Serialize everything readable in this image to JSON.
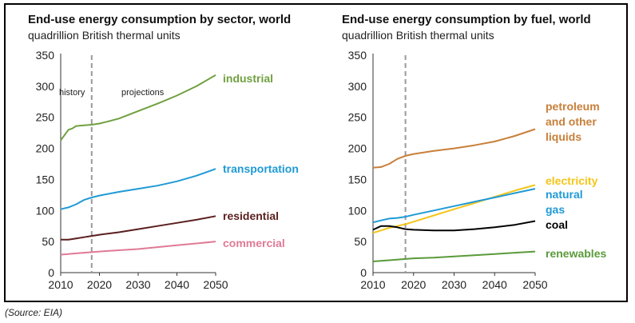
{
  "source_note": "(Source: EIA)",
  "colors": {
    "industrial": "#70a040",
    "transportation": "#1f9ad6",
    "residential": "#5a1e1e",
    "commercial": "#e07a95",
    "petroleum": "#c87f3a",
    "electricity": "#f5c518",
    "natural_gas": "#1f9ad6",
    "coal": "#000000",
    "renewables": "#5a9a3a",
    "divider": "#999999"
  },
  "chart_data": [
    {
      "type": "line",
      "title": "End-use energy consumption by sector, world",
      "subtitle": "quadrillion British thermal units",
      "xlim": [
        2010,
        2050
      ],
      "ylim": [
        0,
        350
      ],
      "xticks": [
        2010,
        2020,
        2030,
        2040,
        2050
      ],
      "yticks": [
        0,
        50,
        100,
        150,
        200,
        250,
        300,
        350
      ],
      "divider_x": 2018,
      "annotations": [
        "history",
        "projections"
      ],
      "grid": false,
      "series": [
        {
          "name": "industrial",
          "color_key": "industrial",
          "x": [
            2010,
            2012,
            2013,
            2014,
            2016,
            2018,
            2020,
            2022,
            2025,
            2030,
            2035,
            2040,
            2045,
            2050
          ],
          "y": [
            213,
            230,
            232,
            236,
            237,
            238,
            240,
            243,
            248,
            260,
            272,
            285,
            300,
            318
          ]
        },
        {
          "name": "transportation",
          "color_key": "transportation",
          "x": [
            2010,
            2012,
            2014,
            2016,
            2018,
            2020,
            2025,
            2030,
            2035,
            2040,
            2045,
            2050
          ],
          "y": [
            102,
            105,
            110,
            117,
            121,
            124,
            130,
            135,
            140,
            147,
            156,
            167
          ]
        },
        {
          "name": "residential",
          "color_key": "residential",
          "x": [
            2010,
            2012,
            2014,
            2016,
            2018,
            2020,
            2025,
            2030,
            2035,
            2040,
            2045,
            2050
          ],
          "y": [
            53,
            53,
            55,
            57,
            59,
            61,
            65,
            70,
            75,
            80,
            85,
            91
          ]
        },
        {
          "name": "commercial",
          "color_key": "commercial",
          "x": [
            2010,
            2012,
            2014,
            2016,
            2018,
            2020,
            2025,
            2030,
            2035,
            2040,
            2045,
            2050
          ],
          "y": [
            29,
            30,
            31,
            32,
            33,
            34,
            36,
            38,
            41,
            44,
            47,
            50
          ]
        }
      ]
    },
    {
      "type": "line",
      "title": "End-use energy consumption by fuel, world",
      "subtitle": "quadrillion British thermal units",
      "xlim": [
        2010,
        2050
      ],
      "ylim": [
        0,
        350
      ],
      "xticks": [
        2010,
        2020,
        2030,
        2040,
        2050
      ],
      "yticks": [
        0,
        50,
        100,
        150,
        200,
        250,
        300,
        350
      ],
      "divider_x": 2018,
      "grid": false,
      "series": [
        {
          "name": "petroleum and other liquids",
          "label_lines": [
            "petroleum",
            "and other",
            "liquids"
          ],
          "color_key": "petroleum",
          "x": [
            2010,
            2012,
            2014,
            2016,
            2018,
            2020,
            2025,
            2030,
            2035,
            2040,
            2045,
            2050
          ],
          "y": [
            169,
            170,
            175,
            183,
            188,
            191,
            196,
            200,
            205,
            211,
            220,
            231
          ]
        },
        {
          "name": "electricity",
          "label_lines": [
            "electricity"
          ],
          "color_key": "electricity",
          "x": [
            2010,
            2012,
            2014,
            2016,
            2018,
            2020,
            2025,
            2030,
            2035,
            2040,
            2045,
            2050
          ],
          "y": [
            64,
            68,
            72,
            75,
            78,
            82,
            92,
            102,
            112,
            122,
            132,
            141
          ]
        },
        {
          "name": "natural gas",
          "label_lines": [
            "natural",
            "gas"
          ],
          "color_key": "natural_gas",
          "x": [
            2010,
            2012,
            2014,
            2016,
            2018,
            2020,
            2025,
            2030,
            2035,
            2040,
            2045,
            2050
          ],
          "y": [
            81,
            84,
            87,
            88,
            90,
            93,
            100,
            107,
            114,
            121,
            128,
            135
          ]
        },
        {
          "name": "coal",
          "label_lines": [
            "coal"
          ],
          "color_key": "coal",
          "x": [
            2010,
            2012,
            2014,
            2016,
            2018,
            2020,
            2025,
            2030,
            2035,
            2040,
            2045,
            2050
          ],
          "y": [
            69,
            75,
            75,
            73,
            70,
            69,
            68,
            68,
            70,
            73,
            77,
            83
          ]
        },
        {
          "name": "renewables",
          "label_lines": [
            "renewables"
          ],
          "color_key": "renewables",
          "x": [
            2010,
            2012,
            2014,
            2016,
            2018,
            2020,
            2025,
            2030,
            2035,
            2040,
            2045,
            2050
          ],
          "y": [
            18,
            19,
            20,
            21,
            22,
            23,
            24,
            26,
            28,
            30,
            32,
            34
          ]
        }
      ]
    }
  ]
}
